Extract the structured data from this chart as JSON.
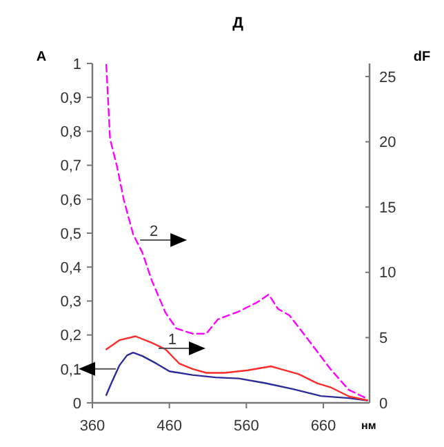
{
  "chart_data": {
    "type": "line",
    "title": "Д",
    "ylabel": "A",
    "y2label": "dF",
    "xlabel": "нм",
    "xlim": [
      360,
      720
    ],
    "xticks": [
      360,
      460,
      560,
      660
    ],
    "ylim": [
      0,
      1
    ],
    "yticks": [
      0,
      {
        "value": 0.1,
        "label": "0,1"
      },
      {
        "value": 0.2,
        "label": "0,2"
      },
      {
        "value": 0.3,
        "label": "0,3"
      },
      {
        "value": 0.4,
        "label": "0,4"
      },
      {
        "value": 0.5,
        "label": "0,5"
      },
      {
        "value": 0.6,
        "label": "0,6"
      },
      {
        "value": 0.7,
        "label": "0,7"
      },
      {
        "value": 0.8,
        "label": "0,8"
      },
      {
        "value": 0.9,
        "label": "0,9"
      },
      1
    ],
    "y2lim": [
      0,
      26
    ],
    "y2ticks": [
      0,
      5,
      10,
      15,
      20,
      25
    ],
    "series": [
      {
        "color": "#2b2b9a",
        "line_style": "solid",
        "x": [
          378,
          385,
          395,
          405,
          413,
          425,
          443,
          460,
          490,
          520,
          550,
          585,
          620,
          657,
          693,
          717
        ],
        "values": [
          0.023,
          0.06,
          0.11,
          0.14,
          0.148,
          0.138,
          0.116,
          0.093,
          0.082,
          0.075,
          0.072,
          0.058,
          0.041,
          0.02,
          0.014,
          0.007
        ]
      },
      {
        "name": "1",
        "axis": "y2",
        "color": "#ff2a2a",
        "line_style": "solid",
        "x": [
          378,
          395,
          416,
          437,
          455,
          473,
          490,
          508,
          532,
          562,
          592,
          604,
          628,
          652,
          669,
          693,
          717
        ],
        "values": [
          4.1,
          4.8,
          5.1,
          4.6,
          4.1,
          3.0,
          2.6,
          2.3,
          2.3,
          2.5,
          2.8,
          2.6,
          2.2,
          1.5,
          1.2,
          0.5,
          0.2
        ]
      },
      {
        "name": "2",
        "axis": "y2",
        "color": "#ff00ff",
        "line_style": "dashed",
        "x": [
          378,
          383,
          392,
          401,
          413,
          425,
          437,
          455,
          469,
          490,
          508,
          523,
          550,
          574,
          589,
          601,
          616,
          646,
          669,
          693,
          714
        ],
        "values": [
          25.9,
          20.2,
          18.1,
          15.5,
          12.9,
          11.5,
          9.4,
          6.9,
          5.7,
          5.3,
          5.3,
          6.4,
          7.0,
          7.7,
          8.3,
          7.2,
          6.7,
          4.4,
          2.6,
          1.0,
          0.4
        ]
      }
    ]
  }
}
